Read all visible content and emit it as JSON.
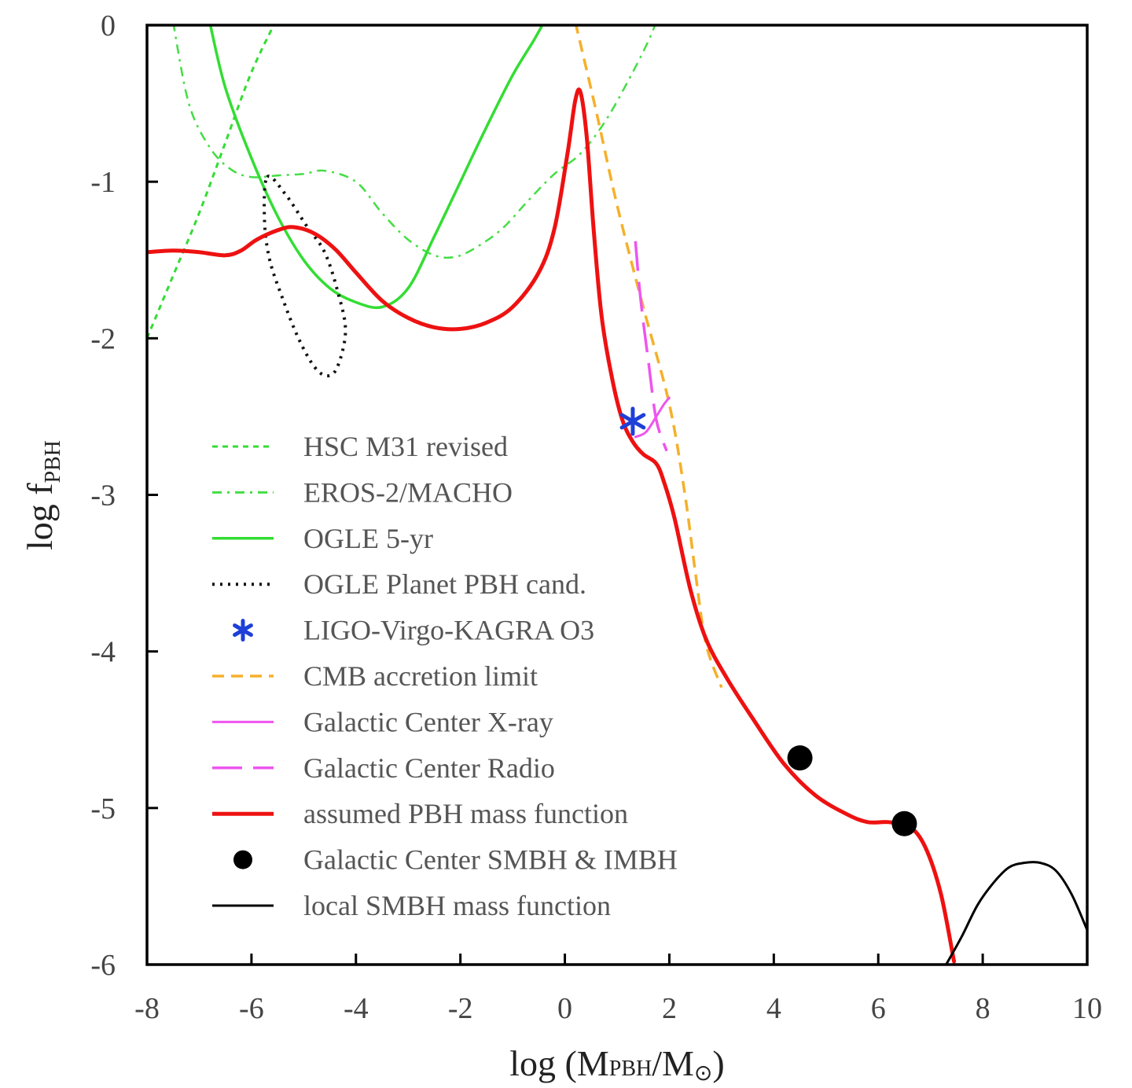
{
  "chart_data": {
    "type": "line",
    "title": "",
    "xlabel": {
      "prefix": "log (M",
      "sub1": "PBH",
      "mid": "/M",
      "sub2": "⊙",
      "suffix": ")"
    },
    "ylabel": {
      "prefix": "log f",
      "sub": "PBH"
    },
    "xlim": [
      -8,
      10
    ],
    "ylim": [
      -6,
      0
    ],
    "x_ticks": [
      -8,
      -6,
      -4,
      -2,
      0,
      2,
      4,
      6,
      8,
      10
    ],
    "y_ticks": [
      0,
      -1,
      -2,
      -3,
      -4,
      -5,
      -6
    ],
    "legend_position": "lower-left",
    "series": [
      {
        "name": "HSC M31 revised",
        "color": "#33dd33",
        "dash": "7,6",
        "width": 3,
        "points": [
          [
            -8.0,
            -2.0
          ],
          [
            -7.5,
            -1.6
          ],
          [
            -7.0,
            -1.2
          ],
          [
            -6.5,
            -0.75
          ],
          [
            -6.0,
            -0.3
          ],
          [
            -5.5,
            0.05
          ]
        ]
      },
      {
        "name": "EROS-2/MACHO",
        "color": "#44dd44",
        "dash": "12,7,3,7",
        "width": 2.5,
        "points": [
          [
            -7.5,
            0.02
          ],
          [
            -7.2,
            -0.5
          ],
          [
            -6.8,
            -0.78
          ],
          [
            -6.4,
            -0.92
          ],
          [
            -6.0,
            -0.97
          ],
          [
            -5.5,
            -0.96
          ],
          [
            -5.0,
            -0.95
          ],
          [
            -4.6,
            -0.93
          ],
          [
            -4.0,
            -1.0
          ],
          [
            -3.5,
            -1.2
          ],
          [
            -3.0,
            -1.37
          ],
          [
            -2.5,
            -1.47
          ],
          [
            -2.1,
            -1.48
          ],
          [
            -1.7,
            -1.42
          ],
          [
            -1.2,
            -1.3
          ],
          [
            -0.7,
            -1.12
          ],
          [
            -0.2,
            -0.95
          ],
          [
            0.3,
            -0.82
          ],
          [
            0.8,
            -0.6
          ],
          [
            1.3,
            -0.3
          ],
          [
            1.6,
            -0.1
          ],
          [
            1.75,
            0.02
          ]
        ]
      },
      {
        "name": "OGLE 5-yr",
        "color": "#33dd33",
        "dash": "",
        "width": 3.5,
        "points": [
          [
            -6.8,
            0.02
          ],
          [
            -6.5,
            -0.4
          ],
          [
            -6.0,
            -0.85
          ],
          [
            -5.5,
            -1.22
          ],
          [
            -5.0,
            -1.5
          ],
          [
            -4.5,
            -1.68
          ],
          [
            -4.0,
            -1.77
          ],
          [
            -3.5,
            -1.8
          ],
          [
            -3.0,
            -1.68
          ],
          [
            -2.5,
            -1.35
          ],
          [
            -2.0,
            -1.0
          ],
          [
            -1.5,
            -0.65
          ],
          [
            -1.0,
            -0.32
          ],
          [
            -0.6,
            -0.1
          ],
          [
            -0.4,
            0.02
          ]
        ]
      },
      {
        "name": "OGLE Planet PBH cand.",
        "color": "#111111",
        "dash": "3,7",
        "width": 4,
        "curve": "closed",
        "points": [
          [
            -5.7,
            -0.97
          ],
          [
            -5.35,
            -1.08
          ],
          [
            -4.95,
            -1.28
          ],
          [
            -4.6,
            -1.45
          ],
          [
            -4.35,
            -1.7
          ],
          [
            -4.2,
            -1.95
          ],
          [
            -4.35,
            -2.18
          ],
          [
            -4.55,
            -2.24
          ],
          [
            -4.8,
            -2.18
          ],
          [
            -5.1,
            -2.0
          ],
          [
            -5.4,
            -1.75
          ],
          [
            -5.65,
            -1.5
          ],
          [
            -5.75,
            -1.25
          ]
        ]
      },
      {
        "name": "LIGO-Virgo-KAGRA O3",
        "color": "#1e3fd8",
        "marker": "asterisk",
        "points": [
          [
            1.3,
            -2.53
          ]
        ]
      },
      {
        "name": "CMB accretion limit",
        "color": "#f5b02a",
        "dash": "15,9",
        "width": 3.5,
        "points": [
          [
            0.2,
            0.02
          ],
          [
            0.6,
            -0.55
          ],
          [
            1.0,
            -1.15
          ],
          [
            1.5,
            -1.8
          ],
          [
            2.0,
            -2.42
          ],
          [
            2.3,
            -3.0
          ],
          [
            2.5,
            -3.5
          ],
          [
            2.7,
            -3.95
          ],
          [
            3.0,
            -4.23
          ]
        ]
      },
      {
        "name": "Galactic Center X-ray",
        "color": "#ee55ee",
        "dash": "",
        "width": 3,
        "points": [
          [
            1.35,
            -2.63
          ],
          [
            1.55,
            -2.6
          ],
          [
            1.75,
            -2.5
          ],
          [
            1.9,
            -2.42
          ],
          [
            2.0,
            -2.38
          ]
        ]
      },
      {
        "name": "Galactic Center Radio",
        "color": "#ee55ee",
        "dash": "38,14",
        "width": 3.5,
        "points": [
          [
            1.35,
            -1.38
          ],
          [
            1.45,
            -1.75
          ],
          [
            1.6,
            -2.15
          ],
          [
            1.75,
            -2.52
          ],
          [
            1.95,
            -2.72
          ]
        ]
      },
      {
        "name": "assumed PBH mass function",
        "color": "#ee1111",
        "dash": "",
        "width": 5,
        "points": [
          [
            -8.0,
            -1.45
          ],
          [
            -7.5,
            -1.44
          ],
          [
            -7.0,
            -1.45
          ],
          [
            -6.5,
            -1.47
          ],
          [
            -6.2,
            -1.44
          ],
          [
            -5.9,
            -1.37
          ],
          [
            -5.5,
            -1.31
          ],
          [
            -5.2,
            -1.29
          ],
          [
            -4.8,
            -1.33
          ],
          [
            -4.4,
            -1.43
          ],
          [
            -4.0,
            -1.58
          ],
          [
            -3.5,
            -1.76
          ],
          [
            -3.0,
            -1.87
          ],
          [
            -2.5,
            -1.93
          ],
          [
            -2.0,
            -1.94
          ],
          [
            -1.5,
            -1.9
          ],
          [
            -1.0,
            -1.8
          ],
          [
            -0.5,
            -1.58
          ],
          [
            -0.2,
            -1.3
          ],
          [
            0.05,
            -0.82
          ],
          [
            0.2,
            -0.48
          ],
          [
            0.3,
            -0.43
          ],
          [
            0.42,
            -0.72
          ],
          [
            0.55,
            -1.3
          ],
          [
            0.7,
            -1.85
          ],
          [
            0.9,
            -2.25
          ],
          [
            1.1,
            -2.52
          ],
          [
            1.3,
            -2.66
          ],
          [
            1.5,
            -2.74
          ],
          [
            1.75,
            -2.8
          ],
          [
            1.9,
            -2.92
          ],
          [
            2.1,
            -3.15
          ],
          [
            2.4,
            -3.6
          ],
          [
            2.7,
            -3.92
          ],
          [
            3.1,
            -4.17
          ],
          [
            3.6,
            -4.43
          ],
          [
            4.2,
            -4.72
          ],
          [
            4.8,
            -4.92
          ],
          [
            5.4,
            -5.04
          ],
          [
            5.8,
            -5.09
          ],
          [
            6.2,
            -5.09
          ],
          [
            6.6,
            -5.12
          ],
          [
            6.9,
            -5.25
          ],
          [
            7.2,
            -5.55
          ],
          [
            7.45,
            -5.98
          ]
        ]
      },
      {
        "name": "Galactic Center SMBH & IMBH",
        "color": "#000000",
        "marker": "dot",
        "points": [
          [
            4.5,
            -4.68
          ],
          [
            6.5,
            -5.1
          ]
        ]
      },
      {
        "name": "local SMBH mass function",
        "color": "#000000",
        "dash": "",
        "width": 3,
        "points": [
          [
            7.3,
            -6.0
          ],
          [
            7.6,
            -5.82
          ],
          [
            7.9,
            -5.62
          ],
          [
            8.2,
            -5.48
          ],
          [
            8.5,
            -5.38
          ],
          [
            8.8,
            -5.35
          ],
          [
            9.1,
            -5.35
          ],
          [
            9.4,
            -5.4
          ],
          [
            9.7,
            -5.55
          ],
          [
            10.0,
            -5.78
          ]
        ]
      }
    ]
  }
}
